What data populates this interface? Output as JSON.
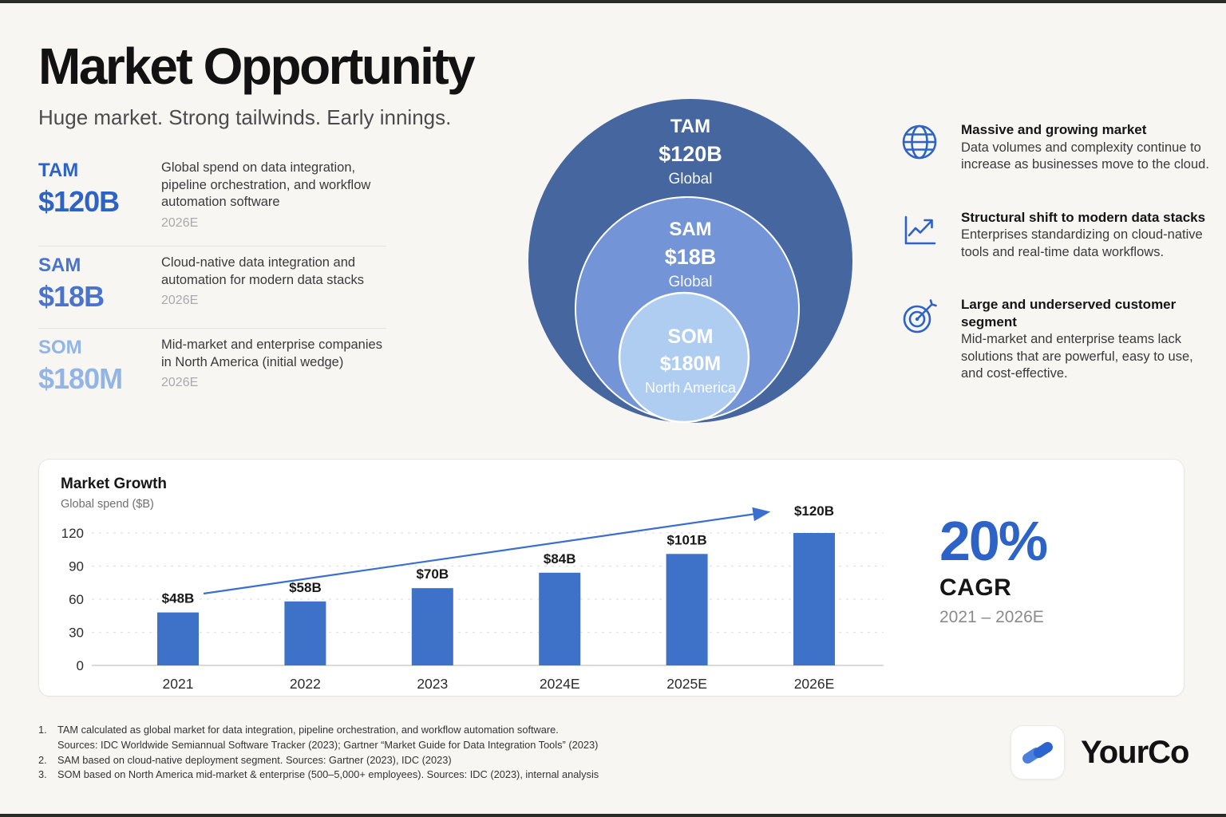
{
  "page": {
    "title": "Market Opportunity",
    "subtitle": "Huge market. Strong tailwinds. Early innings."
  },
  "metrics": [
    {
      "label": "TAM",
      "value": "$120B",
      "description": "Global spend on data integration, pipeline orchestration, and workflow automation software",
      "year": "2026E"
    },
    {
      "label": "SAM",
      "value": "$18B",
      "description": "Cloud-native data integration and automation for modern data stacks",
      "year": "2026E"
    },
    {
      "label": "SOM",
      "value": "$180M",
      "description": "Mid-market and enterprise companies in North America (initial wedge)",
      "year": "2026E"
    }
  ],
  "venn": {
    "circles": [
      {
        "label": "TAM",
        "value": "$120B",
        "scope": "Global",
        "color": "#45669f"
      },
      {
        "label": "SAM",
        "value": "$18B",
        "scope": "Global",
        "color": "#7394d6"
      },
      {
        "label": "SOM",
        "value": "$180M",
        "scope": "North America",
        "color": "#aecdf0"
      }
    ],
    "stroke_color": "#ffffff"
  },
  "drivers": [
    {
      "icon": "globe-icon",
      "title": "Massive and growing market",
      "body": "Data volumes and complexity continue to increase as businesses move to the cloud."
    },
    {
      "icon": "line-chart-icon",
      "title": "Structural shift to modern data stacks",
      "body": "Enterprises standardizing on cloud-native tools and real-time data workflows."
    },
    {
      "icon": "target-icon",
      "title": "Large and underserved customer segment",
      "body": "Mid-market and enterprise teams lack solutions that are powerful, easy to use, and cost-effective."
    }
  ],
  "chart_data": {
    "type": "bar",
    "title": "Market Growth",
    "subtitle": "Global spend ($B)",
    "categories": [
      "2021",
      "2022",
      "2023",
      "2024E",
      "2025E",
      "2026E"
    ],
    "values": [
      48,
      58,
      70,
      84,
      101,
      120
    ],
    "value_labels": [
      "$48B",
      "$58B",
      "$70B",
      "$84B",
      "$101B",
      "$120B"
    ],
    "yticks": [
      0,
      30,
      60,
      90,
      120
    ],
    "ylim": [
      0,
      120
    ],
    "grid": "horizontal-dashed",
    "legend": "none",
    "bar_color": "#3e72c9",
    "trend_arrow": "rising arrow from 2021 bar to 2026E bar",
    "trend_arrow_color": "#3a6fd0"
  },
  "cagr": {
    "value": "20%",
    "label": "CAGR",
    "period": "2021 – 2026E"
  },
  "footnotes": [
    {
      "num": "1.",
      "lines": [
        "TAM calculated as global market for data integration, pipeline orchestration, and workflow automation software.",
        "Sources: IDC Worldwide Semiannual Software Tracker (2023); Gartner “Market Guide for Data Integration Tools” (2023)"
      ]
    },
    {
      "num": "2.",
      "lines": [
        "SAM based on cloud-native deployment segment. Sources: Gartner (2023), IDC (2023)"
      ]
    },
    {
      "num": "3.",
      "lines": [
        "SOM based on North America mid-market & enterprise (500–5,000+ employees). Sources: IDC (2023), internal analysis"
      ]
    }
  ],
  "logo": {
    "name": "YourCo",
    "mark_color_light": "#4a7fdd",
    "mark_color_dark": "#2c63cf"
  }
}
